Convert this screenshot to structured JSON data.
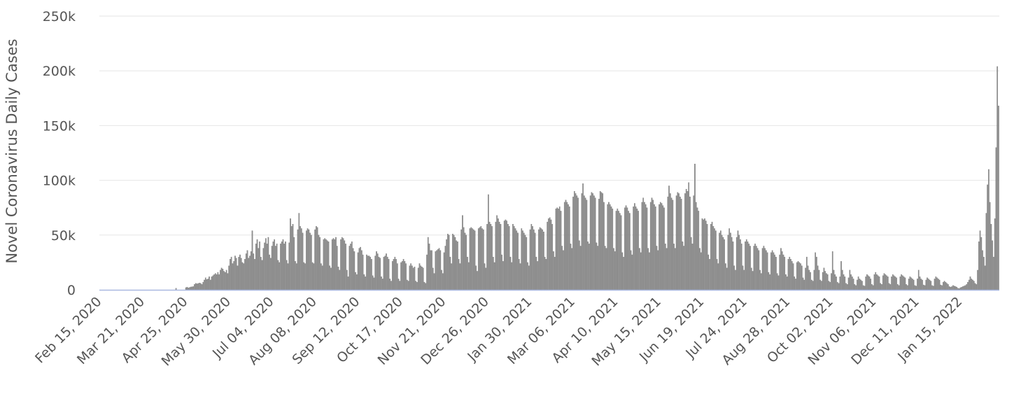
{
  "chart_data": {
    "type": "bar",
    "ylabel": "Novel Coronavirus Daily Cases",
    "xlabel": "",
    "ylim": [
      0,
      250000
    ],
    "yticks": [
      0,
      50000,
      100000,
      150000,
      200000,
      250000
    ],
    "ytick_labels": [
      "0",
      "50k",
      "100k",
      "150k",
      "200k",
      "250k"
    ],
    "x_start": "2020-02-15",
    "x_end": "2022-01-20",
    "xtick_labels": [
      "Feb 15, 2020",
      "Mar 21, 2020",
      "Apr 25, 2020",
      "May 30, 2020",
      "Jul 04, 2020",
      "Aug 08, 2020",
      "Sep 12, 2020",
      "Oct 17, 2020",
      "Nov 21, 2020",
      "Dec 26, 2020",
      "Jan 30, 2021",
      "Mar 06, 2021",
      "Apr 10, 2021",
      "May 15, 2021",
      "Jun 19, 2021",
      "Jul 24, 2021",
      "Aug 28, 2021",
      "Oct 02, 2021",
      "Nov 06, 2021",
      "Dec 11, 2021",
      "Jan 15, 2022"
    ],
    "grid": true,
    "legend": "none",
    "series": [
      {
        "values": [
          0,
          0,
          0,
          0,
          0,
          0,
          0,
          0,
          0,
          0,
          0,
          0,
          0,
          0,
          0,
          0,
          0,
          0,
          0,
          0,
          0,
          0,
          0,
          0,
          0,
          0,
          0,
          0,
          0,
          0,
          0,
          0,
          0,
          0,
          0,
          0,
          0,
          0,
          0,
          0,
          0,
          0,
          0,
          0,
          0,
          0,
          0,
          0,
          0,
          0,
          0,
          0,
          0,
          0,
          0,
          0,
          0,
          0,
          0,
          0,
          0,
          0,
          1500,
          0,
          0,
          0,
          0,
          0,
          0,
          0,
          2000,
          2500,
          1800,
          2200,
          2600,
          2800,
          3000,
          5000,
          6000,
          5500,
          5800,
          6200,
          6000,
          5000,
          7000,
          9000,
          11000,
          9500,
          10000,
          12000,
          9000,
          12000,
          13000,
          14000,
          15000,
          14000,
          16000,
          14000,
          18000,
          20000,
          19000,
          17000,
          16000,
          18000,
          15000,
          22000,
          28000,
          30000,
          24000,
          26000,
          31000,
          29000,
          22000,
          30000,
          32000,
          29000,
          25000,
          24000,
          28000,
          33000,
          36000,
          29000,
          31000,
          35000,
          54000,
          33000,
          28000,
          42000,
          46000,
          38000,
          44000,
          30000,
          27000,
          38000,
          43000,
          47000,
          42000,
          48000,
          32000,
          29000,
          40000,
          44000,
          46000,
          40000,
          42000,
          27000,
          25000,
          42000,
          44000,
          46000,
          42000,
          44000,
          27000,
          24000,
          43000,
          65000,
          58000,
          60000,
          48000,
          26000,
          24000,
          55000,
          70000,
          58000,
          56000,
          52000,
          25000,
          24000,
          54000,
          56000,
          55000,
          52000,
          50000,
          25000,
          24000,
          55000,
          58000,
          57000,
          50000,
          48000,
          24000,
          22000,
          46000,
          47000,
          46000,
          45000,
          44000,
          22000,
          20000,
          46000,
          47000,
          46000,
          48000,
          40000,
          21000,
          18000,
          46000,
          48000,
          47000,
          45000,
          42000,
          18000,
          12000,
          40000,
          42000,
          44000,
          38000,
          35000,
          16000,
          14000,
          34000,
          38000,
          39000,
          36000,
          32000,
          14000,
          12000,
          32000,
          31000,
          31000,
          30000,
          28000,
          13000,
          11000,
          31000,
          35000,
          33000,
          30000,
          29000,
          12000,
          10000,
          30000,
          31000,
          33000,
          30000,
          28000,
          10000,
          8000,
          26000,
          28000,
          30000,
          28000,
          24000,
          10000,
          8000,
          25000,
          26000,
          28000,
          26000,
          24000,
          9000,
          8000,
          22000,
          24000,
          22000,
          20000,
          21000,
          8000,
          7000,
          20000,
          24000,
          22000,
          21000,
          20000,
          7000,
          6000,
          32000,
          48000,
          42000,
          36000,
          36000,
          20000,
          15000,
          35000,
          36000,
          37000,
          38000,
          36000,
          18000,
          15000,
          34000,
          40000,
          46000,
          51000,
          50000,
          30000,
          24000,
          51000,
          50000,
          48000,
          45000,
          44000,
          28000,
          24000,
          55000,
          68000,
          57000,
          52000,
          50000,
          30000,
          25000,
          56000,
          57000,
          56000,
          55000,
          54000,
          22000,
          17000,
          56000,
          57000,
          58000,
          56000,
          55000,
          24000,
          20000,
          60000,
          87000,
          62000,
          60000,
          58000,
          30000,
          25000,
          62000,
          68000,
          65000,
          62000,
          60000,
          32000,
          26000,
          63000,
          64000,
          63000,
          60000,
          58000,
          30000,
          25000,
          60000,
          58000,
          56000,
          54000,
          52000,
          28000,
          24000,
          56000,
          54000,
          52000,
          50000,
          48000,
          25000,
          22000,
          55000,
          60000,
          58000,
          55000,
          52000,
          30000,
          26000,
          55000,
          57000,
          56000,
          55000,
          53000,
          30000,
          28000,
          62000,
          65000,
          66000,
          64000,
          60000,
          35000,
          30000,
          74000,
          75000,
          74000,
          76000,
          72000,
          40000,
          36000,
          80000,
          82000,
          80000,
          78000,
          76000,
          42000,
          38000,
          85000,
          90000,
          88000,
          86000,
          84000,
          45000,
          40000,
          88000,
          97000,
          86000,
          84000,
          82000,
          44000,
          42000,
          86000,
          89000,
          88000,
          86000,
          84000,
          43000,
          40000,
          83000,
          90000,
          89000,
          88000,
          80000,
          40000,
          38000,
          78000,
          80000,
          78000,
          76000,
          74000,
          38000,
          35000,
          72000,
          74000,
          72000,
          70000,
          68000,
          34000,
          30000,
          75000,
          77000,
          75000,
          72000,
          70000,
          36000,
          32000,
          76000,
          79000,
          76000,
          74000,
          72000,
          38000,
          34000,
          80000,
          84000,
          80000,
          78000,
          75000,
          38000,
          34000,
          80000,
          84000,
          82000,
          78000,
          76000,
          40000,
          36000,
          78000,
          80000,
          79000,
          77000,
          75000,
          42000,
          38000,
          85000,
          95000,
          88000,
          84000,
          82000,
          42000,
          38000,
          86000,
          89000,
          88000,
          85000,
          83000,
          44000,
          40000,
          88000,
          92000,
          90000,
          98000,
          85000,
          48000,
          42000,
          86000,
          115000,
          80000,
          75000,
          72000,
          38000,
          34000,
          65000,
          64000,
          65000,
          63000,
          60000,
          32000,
          28000,
          60000,
          62000,
          58000,
          56000,
          54000,
          28000,
          24000,
          52000,
          54000,
          50000,
          48000,
          46000,
          24000,
          20000,
          50000,
          56000,
          52000,
          48000,
          44000,
          22000,
          18000,
          48000,
          54000,
          50000,
          46000,
          42000,
          22000,
          18000,
          44000,
          46000,
          44000,
          42000,
          40000,
          20000,
          17000,
          40000,
          42000,
          40000,
          38000,
          36000,
          18000,
          15000,
          38000,
          40000,
          38000,
          36000,
          34000,
          16000,
          14000,
          34000,
          36000,
          34000,
          32000,
          30000,
          15000,
          13000,
          32000,
          38000,
          35000,
          32000,
          30000,
          14000,
          12000,
          28000,
          30000,
          28000,
          26000,
          24000,
          12000,
          10000,
          25000,
          26000,
          25000,
          24000,
          22000,
          11000,
          9000,
          20000,
          30000,
          22000,
          18000,
          16000,
          9000,
          8000,
          18000,
          34000,
          30000,
          22000,
          18000,
          9000,
          8000,
          16000,
          20000,
          17000,
          15000,
          14000,
          8000,
          7000,
          15000,
          35000,
          18000,
          14000,
          12000,
          7000,
          6000,
          12000,
          26000,
          18000,
          14000,
          12000,
          6000,
          5000,
          11000,
          18000,
          14000,
          12000,
          10000,
          5000,
          4000,
          9000,
          12000,
          10000,
          9000,
          8000,
          4000,
          3500,
          12000,
          14000,
          13000,
          12000,
          10000,
          5000,
          4000,
          14000,
          16000,
          14000,
          13000,
          12000,
          6000,
          5000,
          13000,
          15000,
          14000,
          13000,
          12000,
          6000,
          5000,
          12000,
          14000,
          13000,
          12000,
          11000,
          5000,
          4000,
          12000,
          14000,
          13000,
          12000,
          11000,
          5000,
          4000,
          10000,
          12000,
          11000,
          10000,
          9000,
          4000,
          3500,
          10000,
          18000,
          12000,
          10000,
          9000,
          4500,
          4000,
          9000,
          11000,
          10000,
          9000,
          8000,
          4000,
          3500,
          10000,
          12000,
          11000,
          10000,
          9000,
          4500,
          4000,
          7000,
          8000,
          7000,
          6000,
          5000,
          3000,
          2500,
          3000,
          4000,
          3500,
          3000,
          2500,
          1500,
          1200,
          2000,
          2500,
          3000,
          3500,
          4000,
          5000,
          7000,
          9000,
          12000,
          10000,
          9000,
          8000,
          6000,
          5000,
          18000,
          44000,
          54000,
          48000,
          36000,
          30000,
          22000,
          70000,
          96000,
          110000,
          80000,
          60000,
          45000,
          30000,
          65000,
          130000,
          204000,
          168000
        ]
      }
    ]
  }
}
